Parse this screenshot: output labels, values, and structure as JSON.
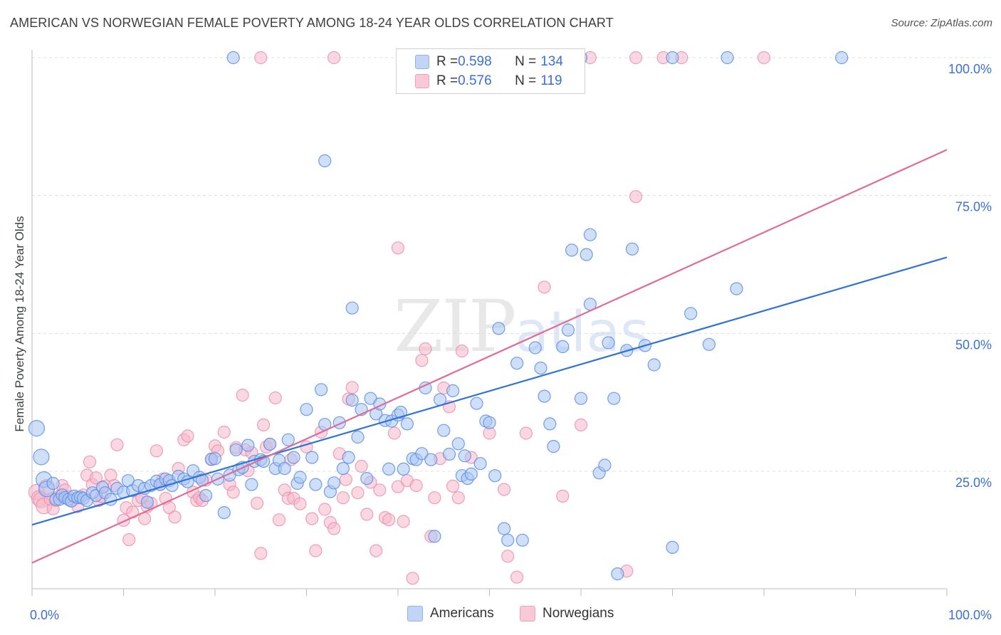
{
  "title": "AMERICAN VS NORWEGIAN FEMALE POVERTY AMONG 18-24 YEAR OLDS CORRELATION CHART",
  "source": "Source: ZipAtlas.com",
  "watermark": {
    "zip": "ZIP",
    "atlas": "atlas"
  },
  "legend": {
    "rows": [
      {
        "r_label": "R = ",
        "r_value": "0.598",
        "n_label": "N = ",
        "n_value": "134",
        "color": "#8fb2ec"
      },
      {
        "r_label": "R = ",
        "r_value": "0.576",
        "n_label": "N = ",
        "n_value": "119",
        "color": "#f0a1ba"
      }
    ]
  },
  "bottom_legend": {
    "americans": "Americans",
    "norwegians": "Norwegians"
  },
  "chart_data": {
    "type": "scatter",
    "title": "AMERICAN VS NORWEGIAN FEMALE POVERTY AMONG 18-24 YEAR OLDS CORRELATION CHART",
    "xlabel": "",
    "ylabel": "Female Poverty Among 18-24 Year Olds",
    "xlim": [
      0,
      100
    ],
    "ylim": [
      0,
      102
    ],
    "x_tick_labels": [
      "0.0%",
      "100.0%"
    ],
    "y_tick_labels": [
      "25.0%",
      "50.0%",
      "75.0%",
      "100.0%"
    ],
    "y_ticks": [
      25,
      50,
      75,
      100
    ],
    "grid": "horizontal dashed",
    "legend_position": "top-center",
    "colors": {
      "americans": "#5b8ee6",
      "americans_fill": "#a9c4f2",
      "americans_line": "#2f72d6",
      "norwegians": "#ec8fae",
      "norwegians_fill": "#f6b8cb",
      "norwegians_line": "#e06b97"
    },
    "series": [
      {
        "name": "Americans",
        "trend": [
          [
            0,
            15.3
          ],
          [
            100,
            63.8
          ]
        ],
        "points": [
          [
            0.5,
            32.8
          ],
          [
            1,
            27.6
          ],
          [
            1.3,
            23.5
          ],
          [
            1.6,
            21.8
          ],
          [
            2.3,
            22.8
          ],
          [
            2.6,
            19.9
          ],
          [
            3,
            19.9
          ],
          [
            3.3,
            20.7
          ],
          [
            3.6,
            20.2
          ],
          [
            4,
            19.9
          ],
          [
            4.3,
            19.6
          ],
          [
            4.6,
            20.5
          ],
          [
            5,
            20.2
          ],
          [
            5.3,
            20.3
          ],
          [
            5.6,
            20.1
          ],
          [
            6,
            19.7
          ],
          [
            6.6,
            21.1
          ],
          [
            7,
            20.6
          ],
          [
            7.7,
            22.1
          ],
          [
            8,
            21.1
          ],
          [
            8.6,
            19.9
          ],
          [
            9.3,
            21.9
          ],
          [
            10,
            21.2
          ],
          [
            10.5,
            23.3
          ],
          [
            11,
            21.5
          ],
          [
            11.6,
            22.4
          ],
          [
            12.3,
            21.9
          ],
          [
            12.6,
            19.4
          ],
          [
            13,
            22.4
          ],
          [
            13.6,
            23.2
          ],
          [
            14,
            22.6
          ],
          [
            14.6,
            23.6
          ],
          [
            15,
            23.3
          ],
          [
            15.3,
            22.4
          ],
          [
            16,
            24.1
          ],
          [
            16.6,
            23.6
          ],
          [
            17,
            23.1
          ],
          [
            17.6,
            25.1
          ],
          [
            18.3,
            23.9
          ],
          [
            18.6,
            23.4
          ],
          [
            19,
            20.6
          ],
          [
            19.6,
            27.2
          ],
          [
            20,
            27.3
          ],
          [
            20.3,
            23.6
          ],
          [
            21,
            17.5
          ],
          [
            21.6,
            24.3
          ],
          [
            22.3,
            28.9
          ],
          [
            22.6,
            25.3
          ],
          [
            23,
            25.7
          ],
          [
            23.6,
            29.7
          ],
          [
            24,
            22.6
          ],
          [
            24.3,
            26.8
          ],
          [
            25,
            27.1
          ],
          [
            25.3,
            26.8
          ],
          [
            26,
            29.9
          ],
          [
            26.6,
            25.5
          ],
          [
            27,
            27.0
          ],
          [
            27.6,
            25.5
          ],
          [
            28,
            30.7
          ],
          [
            28.6,
            27.5
          ],
          [
            29,
            22.8
          ],
          [
            29.3,
            23.9
          ],
          [
            30,
            36.2
          ],
          [
            30.6,
            27.5
          ],
          [
            31,
            22.6
          ],
          [
            31.6,
            39.8
          ],
          [
            32,
            33.5
          ],
          [
            32.6,
            21.3
          ],
          [
            33,
            22.9
          ],
          [
            33.6,
            33.8
          ],
          [
            34,
            25.5
          ],
          [
            34.6,
            27.5
          ],
          [
            35,
            37.9
          ],
          [
            35.6,
            31.2
          ],
          [
            36,
            36.2
          ],
          [
            36.6,
            23.7
          ],
          [
            37,
            38.2
          ],
          [
            37.6,
            35.4
          ],
          [
            38,
            37.2
          ],
          [
            38.6,
            34.2
          ],
          [
            39,
            25.4
          ],
          [
            39.3,
            34.1
          ],
          [
            40,
            35.2
          ],
          [
            40.3,
            35.7
          ],
          [
            40.6,
            25.4
          ],
          [
            41,
            33.6
          ],
          [
            41.6,
            27.3
          ],
          [
            42,
            27.1
          ],
          [
            42.6,
            28.2
          ],
          [
            43,
            40.1
          ],
          [
            43.6,
            27.1
          ],
          [
            44,
            13.2
          ],
          [
            44.6,
            38.0
          ],
          [
            45,
            32.4
          ],
          [
            45.6,
            28.1
          ],
          [
            46,
            39.6
          ],
          [
            46.6,
            30.0
          ],
          [
            47,
            24.2
          ],
          [
            47.3,
            27.8
          ],
          [
            47.6,
            23.7
          ],
          [
            48,
            24.5
          ],
          [
            48.6,
            37.3
          ],
          [
            49,
            26.4
          ],
          [
            49.6,
            34.1
          ],
          [
            50,
            33.8
          ],
          [
            50.6,
            24.2
          ],
          [
            51,
            50.9
          ],
          [
            51.6,
            14.6
          ],
          [
            52,
            12.5
          ],
          [
            53,
            44.6
          ],
          [
            53.6,
            12.5
          ],
          [
            55,
            47.4
          ],
          [
            55.6,
            43.7
          ],
          [
            56,
            38.6
          ],
          [
            56.6,
            33.6
          ],
          [
            57,
            29.5
          ],
          [
            58,
            47.6
          ],
          [
            58.6,
            50.6
          ],
          [
            59,
            65.1
          ],
          [
            60,
            38.2
          ],
          [
            60.6,
            64.3
          ],
          [
            61,
            67.9
          ],
          [
            62,
            24.7
          ],
          [
            62.6,
            26.1
          ],
          [
            63,
            48.3
          ],
          [
            63.6,
            38.2
          ],
          [
            64,
            6.4
          ],
          [
            65,
            46.9
          ],
          [
            65.6,
            65.3
          ],
          [
            67,
            47.8
          ],
          [
            68,
            44.3
          ],
          [
            70,
            11.2
          ],
          [
            72,
            53.6
          ],
          [
            74,
            48.0
          ],
          [
            77,
            58.1
          ],
          [
            35,
            54.6
          ],
          [
            61,
            55.3
          ],
          [
            32,
            81.3
          ],
          [
            22,
            100
          ],
          [
            42.6,
            100
          ],
          [
            55,
            100
          ],
          [
            60,
            100
          ],
          [
            70,
            100
          ],
          [
            76,
            100
          ],
          [
            88.5,
            100
          ]
        ]
      },
      {
        "name": "Norwegians",
        "trend": [
          [
            0,
            8.4
          ],
          [
            100,
            83.3
          ]
        ],
        "points": [
          [
            0.5,
            21.2
          ],
          [
            0.8,
            20.1
          ],
          [
            1,
            19.8
          ],
          [
            1.3,
            18.7
          ],
          [
            1.6,
            22.1
          ],
          [
            2,
            19.9
          ],
          [
            2.3,
            18.2
          ],
          [
            2.6,
            19.7
          ],
          [
            3,
            20.5
          ],
          [
            3.3,
            22.4
          ],
          [
            3.6,
            21.6
          ],
          [
            4,
            20.4
          ],
          [
            4.3,
            19.7
          ],
          [
            5,
            18.6
          ],
          [
            5.6,
            20.7
          ],
          [
            6,
            24.3
          ],
          [
            6.3,
            26.7
          ],
          [
            6.6,
            22.6
          ],
          [
            7,
            23.8
          ],
          [
            7.3,
            19.7
          ],
          [
            7.6,
            20.4
          ],
          [
            8,
            22.3
          ],
          [
            8.6,
            24.3
          ],
          [
            9,
            22.4
          ],
          [
            9.3,
            29.8
          ],
          [
            10,
            16.1
          ],
          [
            10.3,
            18.4
          ],
          [
            10.6,
            12.6
          ],
          [
            11,
            17.6
          ],
          [
            11.6,
            19.7
          ],
          [
            12,
            20.2
          ],
          [
            12.3,
            16.4
          ],
          [
            12.6,
            18.6
          ],
          [
            13,
            19.2
          ],
          [
            13.6,
            28.7
          ],
          [
            14,
            22.6
          ],
          [
            14.3,
            23.6
          ],
          [
            14.6,
            20.1
          ],
          [
            15,
            18.4
          ],
          [
            15.6,
            16.7
          ],
          [
            16,
            25.5
          ],
          [
            16.6,
            30.7
          ],
          [
            17,
            31.4
          ],
          [
            17.6,
            21.2
          ],
          [
            18,
            19.7
          ],
          [
            18.3,
            20.2
          ],
          [
            18.6,
            19.7
          ],
          [
            19,
            23.4
          ],
          [
            19.6,
            27.1
          ],
          [
            20,
            29.6
          ],
          [
            20.3,
            28.7
          ],
          [
            21,
            32.1
          ],
          [
            21.6,
            22.6
          ],
          [
            22,
            21.2
          ],
          [
            22.3,
            29.3
          ],
          [
            23,
            38.8
          ],
          [
            23.3,
            28.9
          ],
          [
            23.6,
            25.1
          ],
          [
            24,
            28.4
          ],
          [
            24.6,
            19.2
          ],
          [
            25,
            10.1
          ],
          [
            25.3,
            33.4
          ],
          [
            25.6,
            29.4
          ],
          [
            26,
            29.9
          ],
          [
            26.6,
            38.3
          ],
          [
            27,
            16.2
          ],
          [
            27.6,
            21.6
          ],
          [
            28,
            20.1
          ],
          [
            28.3,
            27.1
          ],
          [
            28.6,
            20.1
          ],
          [
            29.3,
            19.1
          ],
          [
            30,
            29.4
          ],
          [
            30.6,
            16.4
          ],
          [
            31,
            10.6
          ],
          [
            31.6,
            32.1
          ],
          [
            32,
            18.1
          ],
          [
            32.6,
            15.7
          ],
          [
            33,
            14.6
          ],
          [
            33.6,
            28.2
          ],
          [
            34,
            20.2
          ],
          [
            34.3,
            23.5
          ],
          [
            34.6,
            38.1
          ],
          [
            35,
            40.2
          ],
          [
            35.6,
            21.1
          ],
          [
            36,
            25.9
          ],
          [
            36.6,
            17.2
          ],
          [
            37,
            23.0
          ],
          [
            37.6,
            10.6
          ],
          [
            38,
            21.6
          ],
          [
            38.6,
            16.6
          ],
          [
            39,
            16.2
          ],
          [
            39.6,
            31.9
          ],
          [
            40,
            22.2
          ],
          [
            40.6,
            15.9
          ],
          [
            41,
            23.3
          ],
          [
            41.6,
            5.6
          ],
          [
            42,
            22.4
          ],
          [
            42.6,
            45.1
          ],
          [
            43,
            47.2
          ],
          [
            43.6,
            13.2
          ],
          [
            44,
            20.2
          ],
          [
            44.6,
            27.3
          ],
          [
            45,
            40.1
          ],
          [
            45.6,
            36.7
          ],
          [
            46,
            22.3
          ],
          [
            46.6,
            20.2
          ],
          [
            47,
            46.8
          ],
          [
            48,
            27.5
          ],
          [
            50,
            31.9
          ],
          [
            51.6,
            21.7
          ],
          [
            52,
            9.6
          ],
          [
            53,
            5.8
          ],
          [
            54,
            31.9
          ],
          [
            56,
            58.4
          ],
          [
            58,
            20.5
          ],
          [
            60,
            33.4
          ],
          [
            65,
            6.9
          ],
          [
            66,
            74.8
          ],
          [
            40,
            65.5
          ],
          [
            25,
            100
          ],
          [
            33,
            100
          ],
          [
            45.6,
            100
          ],
          [
            61,
            100
          ],
          [
            66,
            100
          ],
          [
            69,
            100
          ],
          [
            71,
            100
          ],
          [
            80,
            100
          ]
        ]
      }
    ]
  }
}
